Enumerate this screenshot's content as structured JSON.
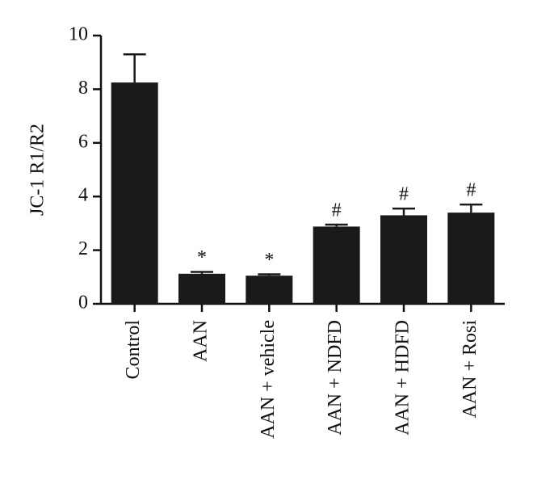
{
  "chart_data": {
    "type": "bar",
    "y_label": "JC-1 R1/R2",
    "categories": [
      "Control",
      "AAN",
      "AAN + vehicle",
      "AAN + NDFD",
      "AAN + HDFD",
      "AAN + Rosi"
    ],
    "values": [
      8.25,
      1.12,
      1.05,
      2.88,
      3.3,
      3.4
    ],
    "errors": [
      1.05,
      0.07,
      0.05,
      0.07,
      0.25,
      0.3
    ],
    "annotations": [
      null,
      "*",
      "*",
      "#",
      "#",
      "#"
    ],
    "color": "#1a1a1a",
    "ylim": [
      0,
      10
    ],
    "yticks": [
      0,
      2,
      4,
      6,
      8,
      10
    ]
  }
}
